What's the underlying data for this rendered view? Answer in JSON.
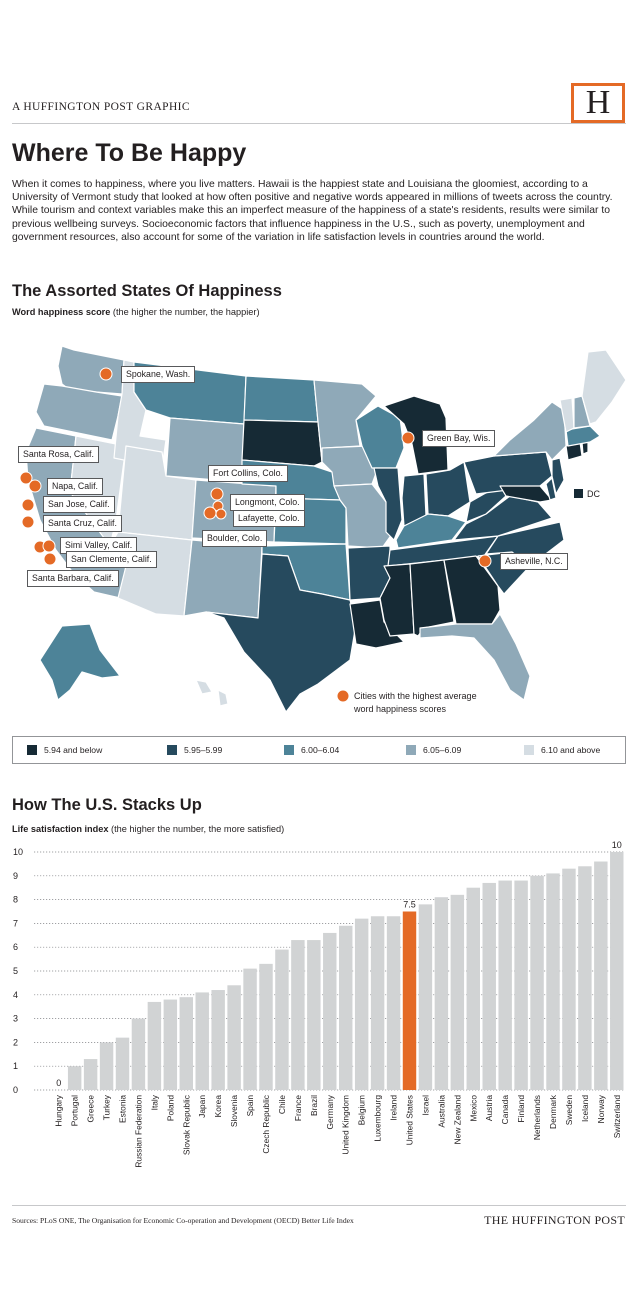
{
  "header": {
    "kicker": "A HUFFINGTON POST GRAPHIC",
    "logo_letter": "H",
    "title": "Where To Be Happy",
    "intro": "When it comes to happiness, where you live matters. Hawaii is the happiest state and Louisiana the gloomiest, according to a University of Vermont study that looked at how often positive and negative words appeared in millions of tweets across the country. While tourism and context variables make this an imperfect measure of the happiness of a state's residents, results were similar to previous wellbeing surveys. Socioeconomic factors that influence happiness in the U.S., such as poverty, unemployment and government resources, also account for some of the variation in life satisfaction levels in countries around the world."
  },
  "map_section": {
    "title": "The Assorted States Of Happiness",
    "subtitle_bold": "Word happiness score",
    "subtitle_rest": " (the higher the number, the happier)",
    "dc_label": "DC",
    "city_legend_line1": "Cities with the highest average",
    "city_legend_line2": "word happiness scores",
    "cities": [
      "Spokane, Wash.",
      "Green Bay, Wis.",
      "Santa Rosa, Calif.",
      "Napa, Calif.",
      "San Jose, Calif.",
      "Santa Cruz, Calif.",
      "Simi Valley, Calif.",
      "San Clemente, Calif.",
      "Santa Barbara, Calif.",
      "Fort Collins, Colo.",
      "Longmont, Colo.",
      "Lafayette, Colo.",
      "Boulder, Colo.",
      "Asheville, N.C."
    ],
    "legend": [
      {
        "label": "5.94 and below",
        "color": "#162a35"
      },
      {
        "label": "5.95–5.99",
        "color": "#264a5e"
      },
      {
        "label": "6.00–6.04",
        "color": "#4d8398"
      },
      {
        "label": "6.05–6.09",
        "color": "#8fa9b8"
      },
      {
        "label": "6.10 and above",
        "color": "#d5dde3"
      }
    ]
  },
  "colors": {
    "accent": "#e46a26",
    "bar": "#d1d3d4",
    "highlight_bar": "#e46a26"
  },
  "chart_section": {
    "title": "How The U.S. Stacks Up",
    "subtitle_bold": "Life satisfaction index",
    "subtitle_rest": " (the higher the number, the more satisfied)"
  },
  "chart_data": {
    "type": "bar",
    "title": "How The U.S. Stacks Up",
    "ylabel": "Life satisfaction index",
    "ylim": [
      0,
      10
    ],
    "yticks": [
      0,
      1,
      2,
      3,
      4,
      5,
      6,
      7,
      8,
      9,
      10
    ],
    "grid": true,
    "highlight": "United States",
    "data_labels": [
      {
        "category": "Hungary",
        "label": "0"
      },
      {
        "category": "United States",
        "label": "7.5"
      },
      {
        "category": "Switzerland",
        "label": "10"
      }
    ],
    "categories": [
      "Hungary",
      "Portugal",
      "Greece",
      "Turkey",
      "Estonia",
      "Russian Federation",
      "Italy",
      "Poland",
      "Slovak Republic",
      "Japan",
      "Korea",
      "Slovenia",
      "Spain",
      "Czech Republic",
      "Chile",
      "France",
      "Brazil",
      "Germany",
      "United Kingdom",
      "Belgium",
      "Luxembourg",
      "Ireland",
      "United States",
      "Israel",
      "Australia",
      "New Zealand",
      "Mexico",
      "Austria",
      "Canada",
      "Finland",
      "Netherlands",
      "Denmark",
      "Sweden",
      "Iceland",
      "Norway",
      "Switzerland"
    ],
    "values": [
      0,
      1.0,
      1.3,
      2.0,
      2.2,
      3.0,
      3.7,
      3.8,
      3.9,
      4.1,
      4.2,
      4.4,
      5.1,
      5.3,
      5.9,
      6.3,
      6.3,
      6.6,
      6.9,
      7.2,
      7.3,
      7.3,
      7.5,
      7.8,
      8.1,
      8.2,
      8.5,
      8.7,
      8.8,
      8.8,
      9.0,
      9.1,
      9.3,
      9.4,
      9.6,
      10
    ]
  },
  "footer": {
    "sources": "Sources: PLoS ONE, The Organisation for Economic Co-operation and Development (OECD) Better Life Index",
    "brand": "THE HUFFINGTON POST"
  }
}
